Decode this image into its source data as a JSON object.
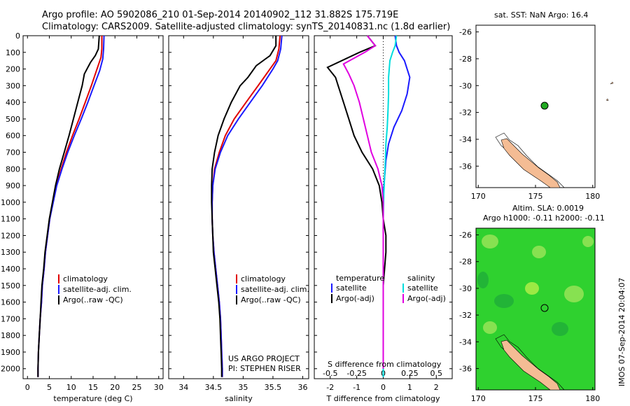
{
  "header": {
    "line1": "Argo profile: AO 5902086_210 01-Sep-2014 20140902_112 31.882S 175.719E",
    "line2": "Climatology: CARS2009. Satellite-adjusted climatology: synTS_20140831.nc (1.8d earlier)"
  },
  "colors": {
    "climatology": "#e00000",
    "satellite": "#1a1aff",
    "argo": "#000000",
    "sat_diff": "#00dddd",
    "argo_diff": "#e000e0",
    "land": "#f4bc94",
    "sst_bg": "#ffffff",
    "sla_green": "#2fd12f",
    "marker": "#22aa22"
  },
  "credits": {
    "line1": "US ARGO PROJECT",
    "line2": "PI: STEPHEN RISER"
  },
  "vertical_stamp": "IMOS 07-Sep-2014 20:04:07",
  "legend": {
    "clim": "climatology",
    "sat": "satellite-adj. clim.",
    "argo": "Argo(..raw -QC)",
    "diff_temperature": "temperature",
    "diff_salinity": "salinity",
    "diff_satellite": "satellite",
    "diff_argo": "Argo(-adj)"
  },
  "sst_map": {
    "title": "sat. SST: NaN Argo: 16.4",
    "lat_ticks": [
      "-26",
      "-28",
      "-30",
      "-32",
      "-34",
      "-36"
    ],
    "lon_ticks": [
      "170",
      "175",
      "180"
    ]
  },
  "sla_map": {
    "title1": "Altim. SLA: 0.0019",
    "title2": "Argo h1000: -0.11 h2000: -0.11",
    "lat_ticks": [
      "-26",
      "-28",
      "-30",
      "-32",
      "-34",
      "-36"
    ],
    "lon_ticks": [
      "170",
      "175",
      "180"
    ]
  },
  "chart_data": [
    {
      "type": "line",
      "panel": "temperature",
      "xlabel": "temperature (deg C)",
      "ylabel": "",
      "xlim": [
        -1,
        31
      ],
      "ylim": [
        2060,
        0
      ],
      "xticks": [
        "0",
        "5",
        "10",
        "15",
        "20",
        "25",
        "30"
      ],
      "yticks": [
        "0",
        "100",
        "200",
        "300",
        "400",
        "500",
        "600",
        "700",
        "800",
        "900",
        "1000",
        "1100",
        "1200",
        "1300",
        "1400",
        "1500",
        "1600",
        "1700",
        "1800",
        "1900",
        "2000"
      ],
      "series": [
        {
          "name": "climatology",
          "color_key": "climatology",
          "points": [
            [
              17.0,
              0
            ],
            [
              17.0,
              80
            ],
            [
              16.8,
              130
            ],
            [
              15.9,
              200
            ],
            [
              14.6,
              300
            ],
            [
              13.2,
              400
            ],
            [
              11.8,
              500
            ],
            [
              10.3,
              600
            ],
            [
              8.9,
              700
            ],
            [
              7.7,
              800
            ],
            [
              6.6,
              900
            ],
            [
              5.8,
              1000
            ],
            [
              5.1,
              1100
            ],
            [
              4.6,
              1200
            ],
            [
              4.1,
              1300
            ],
            [
              3.8,
              1400
            ],
            [
              3.4,
              1500
            ],
            [
              3.2,
              1600
            ],
            [
              2.9,
              1700
            ],
            [
              2.7,
              1800
            ],
            [
              2.5,
              1900
            ],
            [
              2.4,
              2000
            ],
            [
              2.4,
              2050
            ]
          ]
        },
        {
          "name": "satellite-adj. clim.",
          "color_key": "satellite",
          "points": [
            [
              17.5,
              0
            ],
            [
              17.4,
              80
            ],
            [
              17.2,
              140
            ],
            [
              16.5,
              210
            ],
            [
              15.2,
              300
            ],
            [
              13.8,
              400
            ],
            [
              12.3,
              500
            ],
            [
              10.7,
              600
            ],
            [
              9.2,
              700
            ],
            [
              7.9,
              800
            ],
            [
              6.7,
              900
            ],
            [
              5.9,
              1000
            ],
            [
              5.1,
              1100
            ],
            [
              4.6,
              1200
            ],
            [
              4.1,
              1300
            ],
            [
              3.8,
              1400
            ],
            [
              3.4,
              1500
            ],
            [
              3.2,
              1600
            ],
            [
              2.9,
              1700
            ],
            [
              2.7,
              1800
            ],
            [
              2.5,
              1900
            ],
            [
              2.4,
              2000
            ],
            [
              2.4,
              2050
            ]
          ]
        },
        {
          "name": "Argo(..raw -QC)",
          "color_key": "argo",
          "points": [
            [
              16.4,
              0
            ],
            [
              16.2,
              80
            ],
            [
              15.5,
              120
            ],
            [
              14.4,
              160
            ],
            [
              13.0,
              230
            ],
            [
              12.5,
              300
            ],
            [
              11.5,
              400
            ],
            [
              10.5,
              500
            ],
            [
              9.5,
              600
            ],
            [
              8.4,
              700
            ],
            [
              7.3,
              800
            ],
            [
              6.4,
              900
            ],
            [
              5.7,
              1000
            ],
            [
              5.0,
              1100
            ],
            [
              4.5,
              1200
            ],
            [
              4.0,
              1300
            ],
            [
              3.7,
              1400
            ],
            [
              3.3,
              1500
            ],
            [
              3.1,
              1600
            ],
            [
              2.9,
              1700
            ],
            [
              2.7,
              1800
            ],
            [
              2.5,
              1900
            ],
            [
              2.4,
              2000
            ],
            [
              2.4,
              2050
            ]
          ]
        }
      ]
    },
    {
      "type": "line",
      "panel": "salinity",
      "xlabel": "salinity",
      "ylabel": "",
      "xlim": [
        33.75,
        36.1
      ],
      "ylim": [
        2060,
        0
      ],
      "xticks": [
        "34",
        "34.5",
        "35",
        "35.5",
        "36"
      ],
      "series": [
        {
          "name": "climatology",
          "color_key": "climatology",
          "points": [
            [
              35.62,
              0
            ],
            [
              35.6,
              80
            ],
            [
              35.55,
              150
            ],
            [
              35.45,
              200
            ],
            [
              35.25,
              300
            ],
            [
              35.05,
              400
            ],
            [
              34.85,
              500
            ],
            [
              34.7,
              600
            ],
            [
              34.6,
              700
            ],
            [
              34.52,
              800
            ],
            [
              34.49,
              900
            ],
            [
              34.48,
              1000
            ],
            [
              34.48,
              1100
            ],
            [
              34.49,
              1200
            ],
            [
              34.51,
              1300
            ],
            [
              34.54,
              1400
            ],
            [
              34.57,
              1500
            ],
            [
              34.6,
              1600
            ],
            [
              34.62,
              1700
            ],
            [
              34.63,
              1800
            ],
            [
              34.64,
              1900
            ],
            [
              34.65,
              2000
            ],
            [
              34.65,
              2050
            ]
          ]
        },
        {
          "name": "satellite-adj. clim.",
          "color_key": "satellite",
          "points": [
            [
              35.65,
              0
            ],
            [
              35.63,
              80
            ],
            [
              35.58,
              150
            ],
            [
              35.5,
              200
            ],
            [
              35.32,
              300
            ],
            [
              35.12,
              400
            ],
            [
              34.92,
              500
            ],
            [
              34.74,
              600
            ],
            [
              34.62,
              700
            ],
            [
              34.53,
              800
            ],
            [
              34.49,
              900
            ],
            [
              34.48,
              1000
            ],
            [
              34.48,
              1100
            ],
            [
              34.49,
              1200
            ],
            [
              34.51,
              1300
            ],
            [
              34.54,
              1400
            ],
            [
              34.57,
              1500
            ],
            [
              34.6,
              1600
            ],
            [
              34.62,
              1700
            ],
            [
              34.63,
              1800
            ],
            [
              34.64,
              1900
            ],
            [
              34.65,
              2000
            ],
            [
              34.65,
              2050
            ]
          ]
        },
        {
          "name": "Argo(..raw -QC)",
          "color_key": "argo",
          "points": [
            [
              35.55,
              0
            ],
            [
              35.55,
              60
            ],
            [
              35.45,
              120
            ],
            [
              35.22,
              180
            ],
            [
              35.08,
              250
            ],
            [
              34.95,
              300
            ],
            [
              34.8,
              400
            ],
            [
              34.68,
              500
            ],
            [
              34.58,
              600
            ],
            [
              34.52,
              700
            ],
            [
              34.48,
              800
            ],
            [
              34.47,
              900
            ],
            [
              34.47,
              1000
            ],
            [
              34.48,
              1100
            ],
            [
              34.49,
              1200
            ],
            [
              34.5,
              1300
            ],
            [
              34.53,
              1400
            ],
            [
              34.56,
              1500
            ],
            [
              34.59,
              1600
            ],
            [
              34.61,
              1700
            ],
            [
              34.62,
              1800
            ],
            [
              34.63,
              1900
            ],
            [
              34.64,
              2000
            ],
            [
              34.64,
              2050
            ]
          ]
        }
      ]
    },
    {
      "type": "line",
      "panel": "difference",
      "xlabel": "T difference from climatology",
      "title": "S difference from climatology",
      "ylabel": "",
      "xlim": [
        -2.6,
        2.6
      ],
      "ylim": [
        2060,
        0
      ],
      "xticks": [
        "-2",
        "-1",
        "0",
        "1",
        "2"
      ],
      "top_xticks": [
        "-0.5",
        "-0.25",
        "0",
        "0.25",
        "0.5"
      ],
      "series": [
        {
          "name": "satellite (temperature)",
          "color_key": "satellite",
          "points": [
            [
              0.45,
              0
            ],
            [
              0.5,
              60
            ],
            [
              0.6,
              100
            ],
            [
              0.8,
              150
            ],
            [
              1.0,
              250
            ],
            [
              0.9,
              350
            ],
            [
              0.7,
              450
            ],
            [
              0.4,
              550
            ],
            [
              0.2,
              650
            ],
            [
              0.1,
              750
            ],
            [
              0.05,
              850
            ],
            [
              0.0,
              950
            ],
            [
              0.0,
              1050
            ],
            [
              0.0,
              1150
            ],
            [
              0.0,
              1250
            ],
            [
              0.0,
              1350
            ],
            [
              0.0,
              1450
            ],
            [
              0.0,
              1550
            ],
            [
              0.0,
              1650
            ],
            [
              0.0,
              1750
            ],
            [
              0.0,
              1850
            ],
            [
              0.0,
              1950
            ],
            [
              0.0,
              2050
            ]
          ]
        },
        {
          "name": "Argo(-adj) (temperature)",
          "color_key": "argo",
          "points": [
            [
              -0.6,
              0
            ],
            [
              -0.3,
              60
            ],
            [
              -0.9,
              100
            ],
            [
              -2.1,
              190
            ],
            [
              -1.8,
              250
            ],
            [
              -1.7,
              300
            ],
            [
              -1.5,
              400
            ],
            [
              -1.3,
              500
            ],
            [
              -1.1,
              600
            ],
            [
              -0.8,
              700
            ],
            [
              -0.4,
              800
            ],
            [
              -0.15,
              900
            ],
            [
              -0.05,
              1000
            ],
            [
              0.0,
              1100
            ],
            [
              0.1,
              1200
            ],
            [
              0.1,
              1300
            ],
            [
              0.05,
              1400
            ],
            [
              0.0,
              1500
            ],
            [
              0.0,
              1600
            ],
            [
              0.0,
              1700
            ],
            [
              0.0,
              1800
            ],
            [
              0.0,
              1900
            ],
            [
              0.0,
              2000
            ]
          ]
        },
        {
          "name": "satellite (salinity)",
          "color_key": "sat_diff",
          "points": [
            [
              0.5,
              0
            ],
            [
              0.45,
              60
            ],
            [
              0.35,
              100
            ],
            [
              0.25,
              150
            ],
            [
              0.2,
              250
            ],
            [
              0.2,
              350
            ],
            [
              0.18,
              450
            ],
            [
              0.15,
              550
            ],
            [
              0.1,
              650
            ],
            [
              0.08,
              750
            ],
            [
              0.05,
              850
            ],
            [
              0.02,
              950
            ],
            [
              0.0,
              1100
            ],
            [
              0.0,
              1300
            ],
            [
              0.0,
              1500
            ],
            [
              0.0,
              1700
            ],
            [
              0.0,
              1900
            ],
            [
              0.0,
              2050
            ]
          ]
        },
        {
          "name": "Argo(-adj) (salinity)",
          "color_key": "argo_diff",
          "points": [
            [
              -0.6,
              0
            ],
            [
              -0.3,
              60
            ],
            [
              -0.7,
              100
            ],
            [
              -1.5,
              170
            ],
            [
              -1.3,
              230
            ],
            [
              -1.1,
              300
            ],
            [
              -0.9,
              400
            ],
            [
              -0.75,
              500
            ],
            [
              -0.6,
              600
            ],
            [
              -0.45,
              700
            ],
            [
              -0.2,
              800
            ],
            [
              -0.05,
              900
            ],
            [
              0.0,
              1000
            ],
            [
              0.0,
              1200
            ],
            [
              0.0,
              1400
            ],
            [
              0.0,
              1600
            ],
            [
              0.0,
              1800
            ],
            [
              0.0,
              2000
            ]
          ]
        }
      ]
    }
  ]
}
